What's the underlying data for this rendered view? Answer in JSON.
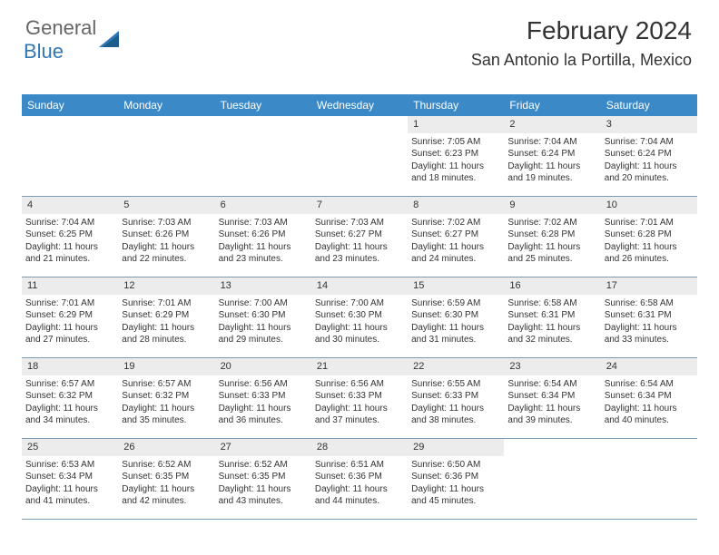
{
  "logo": {
    "text1": "General",
    "text2": "Blue"
  },
  "title": "February 2024",
  "location": "San Antonio la Portilla, Mexico",
  "colors": {
    "header_bg": "#3b89c7",
    "header_text": "#ffffff",
    "daynum_bg": "#ececec",
    "border": "#7b9ab3",
    "logo_blue": "#2f77b5"
  },
  "dayNames": [
    "Sunday",
    "Monday",
    "Tuesday",
    "Wednesday",
    "Thursday",
    "Friday",
    "Saturday"
  ],
  "weeks": [
    [
      null,
      null,
      null,
      null,
      {
        "n": "1",
        "sr": "7:05 AM",
        "ss": "6:23 PM",
        "dh": "11",
        "dm": "18"
      },
      {
        "n": "2",
        "sr": "7:04 AM",
        "ss": "6:24 PM",
        "dh": "11",
        "dm": "19"
      },
      {
        "n": "3",
        "sr": "7:04 AM",
        "ss": "6:24 PM",
        "dh": "11",
        "dm": "20"
      }
    ],
    [
      {
        "n": "4",
        "sr": "7:04 AM",
        "ss": "6:25 PM",
        "dh": "11",
        "dm": "21"
      },
      {
        "n": "5",
        "sr": "7:03 AM",
        "ss": "6:26 PM",
        "dh": "11",
        "dm": "22"
      },
      {
        "n": "6",
        "sr": "7:03 AM",
        "ss": "6:26 PM",
        "dh": "11",
        "dm": "23"
      },
      {
        "n": "7",
        "sr": "7:03 AM",
        "ss": "6:27 PM",
        "dh": "11",
        "dm": "23"
      },
      {
        "n": "8",
        "sr": "7:02 AM",
        "ss": "6:27 PM",
        "dh": "11",
        "dm": "24"
      },
      {
        "n": "9",
        "sr": "7:02 AM",
        "ss": "6:28 PM",
        "dh": "11",
        "dm": "25"
      },
      {
        "n": "10",
        "sr": "7:01 AM",
        "ss": "6:28 PM",
        "dh": "11",
        "dm": "26"
      }
    ],
    [
      {
        "n": "11",
        "sr": "7:01 AM",
        "ss": "6:29 PM",
        "dh": "11",
        "dm": "27"
      },
      {
        "n": "12",
        "sr": "7:01 AM",
        "ss": "6:29 PM",
        "dh": "11",
        "dm": "28"
      },
      {
        "n": "13",
        "sr": "7:00 AM",
        "ss": "6:30 PM",
        "dh": "11",
        "dm": "29"
      },
      {
        "n": "14",
        "sr": "7:00 AM",
        "ss": "6:30 PM",
        "dh": "11",
        "dm": "30"
      },
      {
        "n": "15",
        "sr": "6:59 AM",
        "ss": "6:30 PM",
        "dh": "11",
        "dm": "31"
      },
      {
        "n": "16",
        "sr": "6:58 AM",
        "ss": "6:31 PM",
        "dh": "11",
        "dm": "32"
      },
      {
        "n": "17",
        "sr": "6:58 AM",
        "ss": "6:31 PM",
        "dh": "11",
        "dm": "33"
      }
    ],
    [
      {
        "n": "18",
        "sr": "6:57 AM",
        "ss": "6:32 PM",
        "dh": "11",
        "dm": "34"
      },
      {
        "n": "19",
        "sr": "6:57 AM",
        "ss": "6:32 PM",
        "dh": "11",
        "dm": "35"
      },
      {
        "n": "20",
        "sr": "6:56 AM",
        "ss": "6:33 PM",
        "dh": "11",
        "dm": "36"
      },
      {
        "n": "21",
        "sr": "6:56 AM",
        "ss": "6:33 PM",
        "dh": "11",
        "dm": "37"
      },
      {
        "n": "22",
        "sr": "6:55 AM",
        "ss": "6:33 PM",
        "dh": "11",
        "dm": "38"
      },
      {
        "n": "23",
        "sr": "6:54 AM",
        "ss": "6:34 PM",
        "dh": "11",
        "dm": "39"
      },
      {
        "n": "24",
        "sr": "6:54 AM",
        "ss": "6:34 PM",
        "dh": "11",
        "dm": "40"
      }
    ],
    [
      {
        "n": "25",
        "sr": "6:53 AM",
        "ss": "6:34 PM",
        "dh": "11",
        "dm": "41"
      },
      {
        "n": "26",
        "sr": "6:52 AM",
        "ss": "6:35 PM",
        "dh": "11",
        "dm": "42"
      },
      {
        "n": "27",
        "sr": "6:52 AM",
        "ss": "6:35 PM",
        "dh": "11",
        "dm": "43"
      },
      {
        "n": "28",
        "sr": "6:51 AM",
        "ss": "6:36 PM",
        "dh": "11",
        "dm": "44"
      },
      {
        "n": "29",
        "sr": "6:50 AM",
        "ss": "6:36 PM",
        "dh": "11",
        "dm": "45"
      },
      null,
      null
    ]
  ],
  "labels": {
    "sunrise": "Sunrise:",
    "sunset": "Sunset:",
    "daylight": "Daylight:",
    "hours": "hours",
    "and": "and",
    "minutes": "minutes."
  }
}
